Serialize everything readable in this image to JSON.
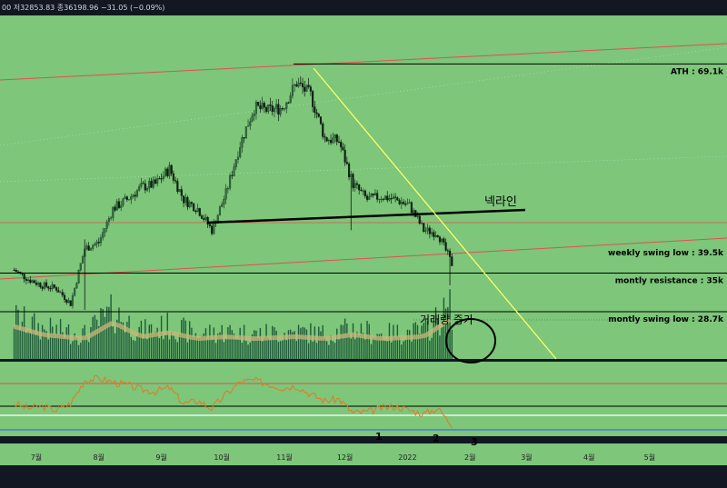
{
  "header": {
    "ohlc_text": "00  저32853.83  종36198.96  −31.05 (−0.09%)"
  },
  "colors": {
    "panel_bg": "#7dc67a",
    "frame_bg": "#131722",
    "bull": "#1e3d28",
    "bear": "#0d1a10",
    "volume": "#1f5b3a",
    "volume_ma": "#c9b57a",
    "rsi": "#e07b22",
    "channel": "#e05050",
    "trend_down": "#ffff66",
    "neckline": "#000000",
    "level": "#000000",
    "rsi_upper": "#e05050",
    "rsi_mid": "#ffffff",
    "rsi_lower": "#3a6fd8"
  },
  "chart_data": {
    "type": "candlestick",
    "x_axis_ticks": [
      "7월",
      "8월",
      "9월",
      "10월",
      "11월",
      "12월",
      "2022",
      "2월",
      "3월",
      "4월",
      "5월"
    ],
    "price_range": [
      21000,
      77000
    ],
    "levels": [
      {
        "name": "ath",
        "label": "ATH : 69.1k",
        "price": 69100
      },
      {
        "name": "weekly-swing-low",
        "label": "weekly swing low : 39.5k",
        "price": 39500
      },
      {
        "name": "montly-resistance",
        "label": "montly resistance : 35k",
        "price": 35000
      },
      {
        "name": "montly-swing-low",
        "label": "montly swing low : 28.7k",
        "price": 28700
      }
    ],
    "annotations": {
      "neckline": "넥라인",
      "volume_increase": "거래량 증가",
      "rsi_points": [
        "1",
        "2",
        "3"
      ]
    },
    "price_path": [
      [
        "2021-06-20",
        35500
      ],
      [
        "2021-06-27",
        34000
      ],
      [
        "2021-07-04",
        33000
      ],
      [
        "2021-07-11",
        32500
      ],
      [
        "2021-07-18",
        30000
      ],
      [
        "2021-07-25",
        39000
      ],
      [
        "2021-08-01",
        40000
      ],
      [
        "2021-08-08",
        45500
      ],
      [
        "2021-08-15",
        47000
      ],
      [
        "2021-08-22",
        49000
      ],
      [
        "2021-08-29",
        49500
      ],
      [
        "2021-09-05",
        52000
      ],
      [
        "2021-09-12",
        47000
      ],
      [
        "2021-09-19",
        45500
      ],
      [
        "2021-09-26",
        42000
      ],
      [
        "2021-10-03",
        48000
      ],
      [
        "2021-10-10",
        56000
      ],
      [
        "2021-10-17",
        62000
      ],
      [
        "2021-10-24",
        61500
      ],
      [
        "2021-10-31",
        62000
      ],
      [
        "2021-11-07",
        66000
      ],
      [
        "2021-11-14",
        64000
      ],
      [
        "2021-11-21",
        57000
      ],
      [
        "2021-11-28",
        56500
      ],
      [
        "2021-12-05",
        49500
      ],
      [
        "2021-12-12",
        47000
      ],
      [
        "2021-12-19",
        47500
      ],
      [
        "2021-12-26",
        47000
      ],
      [
        "2022-01-02",
        46000
      ],
      [
        "2022-01-09",
        42000
      ],
      [
        "2022-01-16",
        41500
      ],
      [
        "2022-01-23",
        36500
      ]
    ],
    "volume_path": [
      [
        "2021-06-20",
        0.75
      ],
      [
        "2021-07-04",
        0.55
      ],
      [
        "2021-07-25",
        0.45
      ],
      [
        "2021-08-08",
        0.85
      ],
      [
        "2021-08-22",
        0.5
      ],
      [
        "2021-09-05",
        0.6
      ],
      [
        "2021-09-19",
        0.45
      ],
      [
        "2021-10-03",
        0.5
      ],
      [
        "2021-10-17",
        0.45
      ],
      [
        "2021-11-07",
        0.5
      ],
      [
        "2021-11-21",
        0.45
      ],
      [
        "2021-12-05",
        0.55
      ],
      [
        "2021-12-19",
        0.45
      ],
      [
        "2022-01-09",
        0.5
      ],
      [
        "2022-01-23",
        0.95
      ]
    ],
    "rsi_path": [
      [
        "2021-06-20",
        45
      ],
      [
        "2021-06-27",
        40
      ],
      [
        "2021-07-04",
        42
      ],
      [
        "2021-07-11",
        38
      ],
      [
        "2021-07-18",
        45
      ],
      [
        "2021-07-25",
        70
      ],
      [
        "2021-08-01",
        72
      ],
      [
        "2021-08-08",
        68
      ],
      [
        "2021-08-15",
        65
      ],
      [
        "2021-08-22",
        60
      ],
      [
        "2021-08-29",
        58
      ],
      [
        "2021-09-05",
        62
      ],
      [
        "2021-09-12",
        45
      ],
      [
        "2021-09-19",
        48
      ],
      [
        "2021-09-26",
        40
      ],
      [
        "2021-10-03",
        55
      ],
      [
        "2021-10-10",
        68
      ],
      [
        "2021-10-17",
        70
      ],
      [
        "2021-10-24",
        66
      ],
      [
        "2021-10-31",
        62
      ],
      [
        "2021-11-07",
        64
      ],
      [
        "2021-11-14",
        55
      ],
      [
        "2021-11-21",
        48
      ],
      [
        "2021-11-28",
        50
      ],
      [
        "2021-12-05",
        35
      ],
      [
        "2021-12-12",
        36
      ],
      [
        "2021-12-19",
        40
      ],
      [
        "2021-12-26",
        42
      ],
      [
        "2022-01-02",
        38
      ],
      [
        "2022-01-09",
        34
      ],
      [
        "2022-01-16",
        40
      ],
      [
        "2022-01-23",
        22
      ]
    ]
  }
}
